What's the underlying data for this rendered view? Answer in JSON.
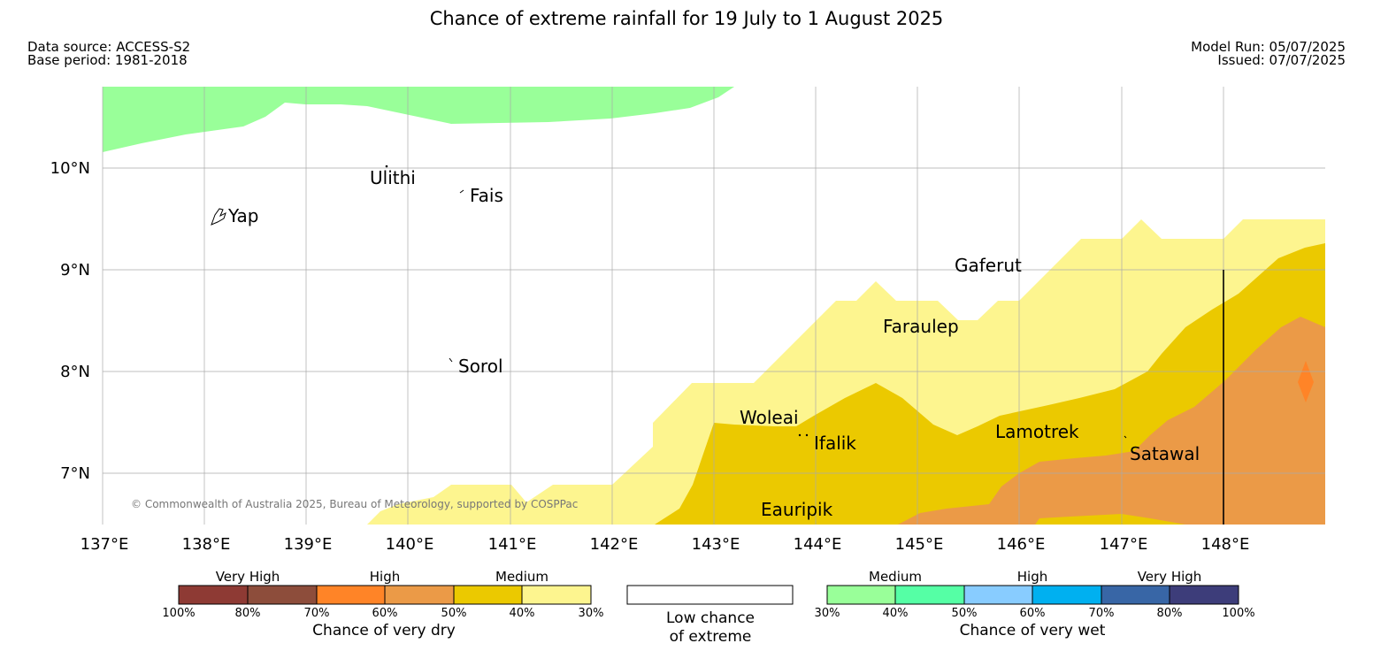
{
  "header": {
    "title": "Chance of extreme rainfall for 19 July to 1 August 2025",
    "data_source": "Data source: ACCESS-S2",
    "base_period": "Base period: 1981-2018",
    "model_run": "Model Run: 05/07/2025",
    "issued": "Issued: 07/07/2025"
  },
  "map": {
    "lon_labels": [
      "137°E",
      "138°E",
      "139°E",
      "140°E",
      "141°E",
      "142°E",
      "143°E",
      "144°E",
      "145°E",
      "146°E",
      "147°E",
      "148°E"
    ],
    "lat_labels": [
      "10°N",
      "9°N",
      "8°N",
      "7°N"
    ],
    "islands": [
      {
        "name": "Yap"
      },
      {
        "name": "Ulithi"
      },
      {
        "name": "Fais"
      },
      {
        "name": "Sorol"
      },
      {
        "name": "Gaferut"
      },
      {
        "name": "Faraulep"
      },
      {
        "name": "Woleai"
      },
      {
        "name": "Ifalik"
      },
      {
        "name": "Lamotrek"
      },
      {
        "name": "Satawal"
      },
      {
        "name": "Eauripik"
      }
    ],
    "copyright": "© Commonwealth of Australia 2025, Bureau of Meteorology, supported by COSPPac",
    "colors": {
      "wet_medium": "#99ff99",
      "dry_medium_light": "#fdf58f",
      "dry_medium": "#ebc900",
      "dry_high_light": "#eb9a47",
      "dry_high": "#ff8427"
    }
  },
  "legend": {
    "dry": {
      "categories": [
        "Very High",
        "High",
        "Medium"
      ],
      "percentages": [
        "100%",
        "80%",
        "70%",
        "60%",
        "50%",
        "40%",
        "30%"
      ],
      "colors": [
        "#8e3a34",
        "#8d4d3b",
        "#ff8427",
        "#eb9a47",
        "#ebc900",
        "#fdf58f"
      ],
      "label": "Chance of very dry"
    },
    "neutral": {
      "line1": "Low chance",
      "line2": "of extreme"
    },
    "wet": {
      "categories": [
        "Medium",
        "High",
        "Very High"
      ],
      "percentages": [
        "30%",
        "40%",
        "50%",
        "60%",
        "70%",
        "80%",
        "100%"
      ],
      "colors": [
        "#99ff99",
        "#55ffa5",
        "#88ccff",
        "#00b0f0",
        "#3866a6",
        "#3d3d7a"
      ],
      "label": "Chance of very wet"
    }
  }
}
